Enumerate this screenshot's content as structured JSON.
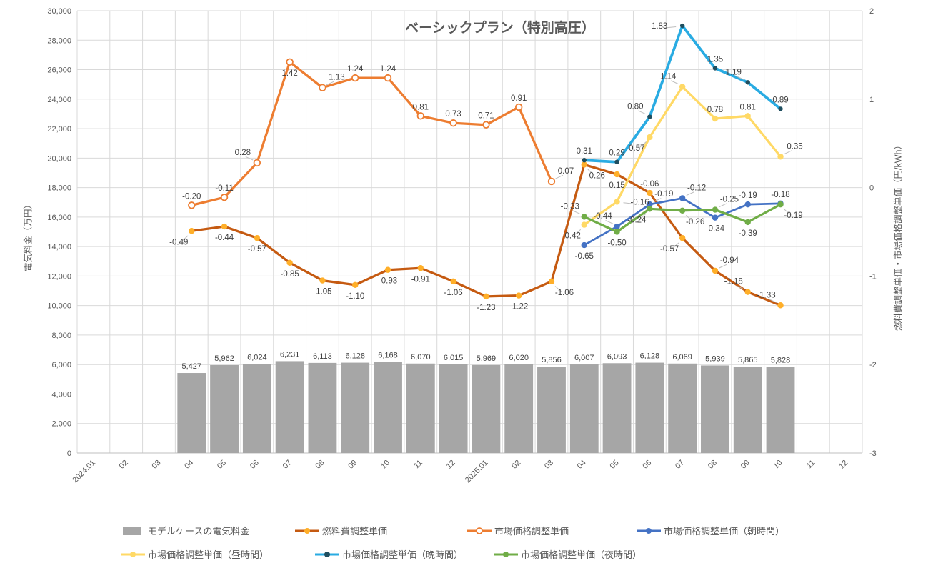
{
  "title": "ベーシックプラン（特別高圧）",
  "chart_data": {
    "type": "combo-bar-line",
    "categories": [
      "2024.01",
      "02",
      "03",
      "04",
      "05",
      "06",
      "07",
      "08",
      "09",
      "10",
      "11",
      "12",
      "2025.01",
      "02",
      "03",
      "04",
      "05",
      "06",
      "07",
      "08",
      "09",
      "10",
      "11",
      "12"
    ],
    "left_axis": {
      "label": "電気料金（万円）",
      "min": 0,
      "max": 30000,
      "step": 2000
    },
    "right_axis": {
      "label": "燃料費調整単価・市場価格調整単価（円/kWh）",
      "min": -3,
      "max": 2,
      "step": 1
    },
    "grid": {
      "horizontal": true,
      "vertical": true
    },
    "legend_position": "bottom",
    "bar_series": {
      "name": "モデルケースの電気料金",
      "color": "#A6A6A6",
      "start_index": 3,
      "values": [
        5427,
        5962,
        6024,
        6231,
        6113,
        6128,
        6168,
        6070,
        6015,
        5969,
        6020,
        5856,
        6007,
        6093,
        6128,
        6069,
        5939,
        5865,
        5828
      ]
    },
    "line_series": [
      {
        "name": "燃料費調整単価",
        "color": "#C55A11",
        "marker": "filled",
        "marker_color": "#FFAF29",
        "start_index": 3,
        "values": [
          -0.49,
          -0.44,
          -0.57,
          -0.85,
          -1.05,
          -1.1,
          -0.93,
          -0.91,
          -1.06,
          -1.23,
          -1.22,
          -1.06,
          0.26,
          0.15,
          -0.06,
          -0.57,
          -0.94,
          -1.18,
          -1.33
        ],
        "label_pos": [
          "bl",
          "b",
          "b",
          "b",
          "b",
          "b",
          "b",
          "b",
          "b",
          "b",
          "b",
          "br",
          "br",
          "b",
          "a",
          "bl",
          "ar",
          "al",
          "al"
        ]
      },
      {
        "name": "市場価格調整単価",
        "color": "#ED7D31",
        "marker": "open",
        "start_index": 3,
        "values": [
          -0.2,
          -0.11,
          0.28,
          1.42,
          1.13,
          1.24,
          1.24,
          0.81,
          0.73,
          0.71,
          0.91,
          0.07
        ],
        "label_pos": [
          "a",
          "a",
          "al",
          "b",
          "ar",
          "a",
          "a",
          "a",
          "a",
          "a",
          "a",
          "ar"
        ]
      },
      {
        "name": "市場価格調整単価（朝時間）",
        "color": "#4472C4",
        "marker": "filled",
        "start_index": 15,
        "values": [
          -0.65,
          -0.44,
          -0.19,
          -0.12,
          -0.34,
          -0.19,
          -0.18
        ],
        "label_pos": [
          "b",
          "al",
          "ar",
          "ar",
          "b",
          "a",
          "a"
        ]
      },
      {
        "name": "市場価格調整単価（昼時間）",
        "color": "#FFD966",
        "marker": "filled",
        "start_index": 15,
        "values": [
          -0.42,
          -0.16,
          0.57,
          1.14,
          0.78,
          0.81,
          0.35
        ],
        "label_pos": [
          "bl",
          "r",
          "bl",
          "al",
          "a",
          "a",
          "ar"
        ]
      },
      {
        "name": "市場価格調整単価（晩時間）",
        "color": "#29ABE2",
        "marker": "filled",
        "marker_color": "#1F4E5F",
        "start_index": 15,
        "values": [
          0.31,
          0.29,
          0.8,
          1.83,
          1.35,
          1.19,
          0.89
        ],
        "label_pos": [
          "a",
          "a",
          "al",
          "l",
          "a",
          "al",
          "a"
        ]
      },
      {
        "name": "市場価格調整単価（夜時間）",
        "color": "#70AD47",
        "marker": "filled",
        "start_index": 15,
        "values": [
          -0.33,
          -0.5,
          -0.24,
          -0.26,
          -0.25,
          -0.39,
          -0.19
        ],
        "label_pos": [
          "al",
          "b",
          "bl",
          "br",
          "ar",
          "b",
          "br"
        ]
      }
    ]
  }
}
